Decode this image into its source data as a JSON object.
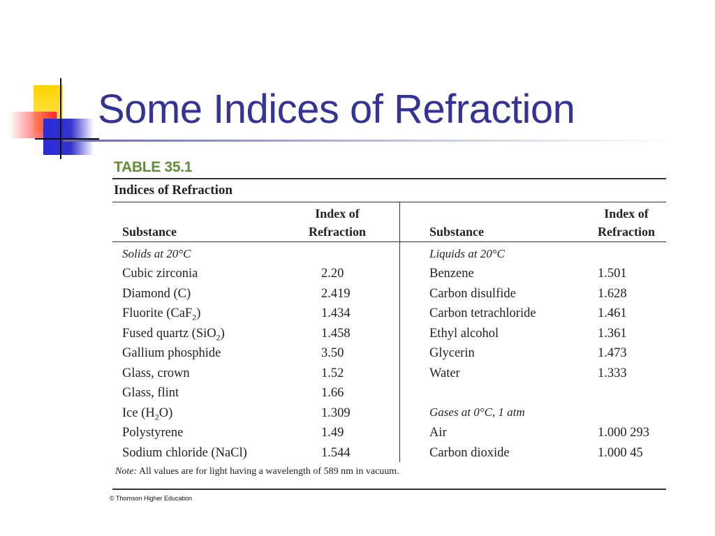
{
  "slide": {
    "title": "Some Indices of Refraction"
  },
  "table": {
    "label": "TABLE 35.1",
    "caption": "Indices of Refraction",
    "headers": {
      "left_substance": "Substance",
      "left_index_line1": "Index of",
      "left_index_line2": "Refraction",
      "right_substance": "Substance",
      "right_index_line1": "Index of",
      "right_index_line2": "Refraction"
    },
    "left_group": "Solids at 20°C",
    "left_rows": [
      {
        "substance": "Cubic zirconia",
        "index": "2.20"
      },
      {
        "substance": "Diamond (C)",
        "index": "2.419"
      },
      {
        "substance": "Fluorite (CaF",
        "sub": "2",
        "after": ")",
        "index": "1.434"
      },
      {
        "substance": "Fused quartz (SiO",
        "sub": "2",
        "after": ")",
        "index": "1.458"
      },
      {
        "substance": "Gallium phosphide",
        "index": "3.50"
      },
      {
        "substance": "Glass, crown",
        "index": "1.52"
      },
      {
        "substance": "Glass, flint",
        "index": "1.66"
      },
      {
        "substance": "Ice (H",
        "sub": "2",
        "after": "O)",
        "index": "1.309"
      },
      {
        "substance": "Polystyrene",
        "index": "1.49"
      },
      {
        "substance": "Sodium chloride (NaCl)",
        "index": "1.544"
      }
    ],
    "right_group_liquids": "Liquids at 20°C",
    "right_liquids": [
      {
        "substance": "Benzene",
        "index": "1.501"
      },
      {
        "substance": "Carbon disulfide",
        "index": "1.628"
      },
      {
        "substance": "Carbon tetrachloride",
        "index": "1.461"
      },
      {
        "substance": "Ethyl alcohol",
        "index": "1.361"
      },
      {
        "substance": "Glycerin",
        "index": "1.473"
      },
      {
        "substance": "Water",
        "index": "1.333"
      }
    ],
    "right_group_gases": "Gases at 0°C, 1 atm",
    "right_gases": [
      {
        "substance": "Air",
        "index": "1.000 293"
      },
      {
        "substance": "Carbon dioxide",
        "index": "1.000 45"
      }
    ],
    "note_label": "Note:",
    "note_text": " All values are for light having a wavelength of 589 nm in vacuum.",
    "credit": "© Thomson Higher Education"
  },
  "colors": {
    "title": "#333399",
    "table_label": "#5f8f35",
    "logo_yellow": "#ffd400",
    "logo_red": "#ff2a2a",
    "logo_blue": "#3333cc"
  }
}
